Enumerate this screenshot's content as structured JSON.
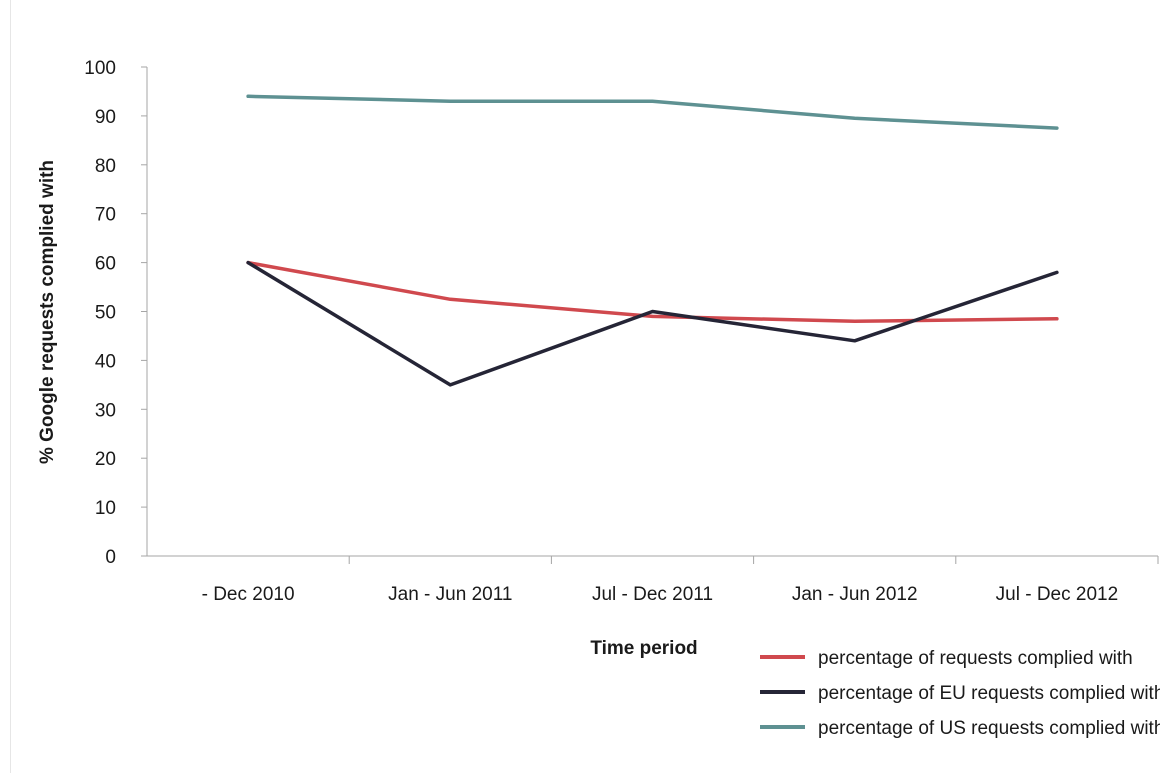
{
  "chart_data": {
    "type": "line",
    "title": "",
    "xlabel": "Time period",
    "ylabel": "% Google requests complied with",
    "categories": [
      "- Dec 2010",
      "Jan - Jun 2011",
      "Jul - Dec 2011",
      "Jan - Jun 2012",
      "Jul - Dec 2012"
    ],
    "ylim": [
      0,
      100
    ],
    "yticks": [
      "0",
      "10",
      "20",
      "30",
      "40",
      "50",
      "60",
      "70",
      "80",
      "90",
      "100"
    ],
    "grid": false,
    "legend_position": "bottom-right",
    "series": [
      {
        "name": "percentage of requests complied with",
        "color": "#d0494e",
        "values": [
          60,
          52.5,
          49,
          48,
          48.5
        ]
      },
      {
        "name": "percentage of EU requests complied with",
        "color": "#252536",
        "values": [
          60,
          35,
          50,
          44,
          58
        ]
      },
      {
        "name": "percentage of US requests complied with",
        "color": "#5e9192",
        "values": [
          94,
          93,
          93,
          89.5,
          87.5
        ]
      }
    ]
  }
}
